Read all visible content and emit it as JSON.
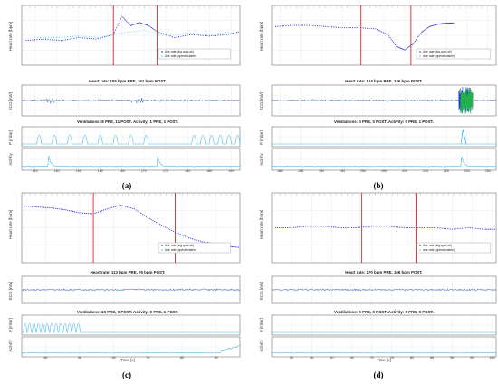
{
  "colors": {
    "rate_ok": "#1c1ccc",
    "rate_questionable": "#4fd3e8",
    "event_line": "#d72626",
    "ecg": "#1f6fc7",
    "ecg_marker": "#d72626",
    "pressure": "#46b8e6",
    "grid": "#e4e4e4",
    "axis": "#555555",
    "burst_a": "#1f3fbf",
    "burst_b": "#22b14c"
  },
  "panels": [
    {
      "caption": "(a)",
      "rate_ylabel": "Heart rate [bpm]",
      "legend": [
        "Ave rate (sig.qual ok)",
        "Ave rate (questionable)"
      ],
      "ecg_title": "Heart rate: 155 bpm PRE, 161 bpm POST.",
      "ecg_ylabel": "ECG [mV]",
      "vent_title": "Ventilations: 8 PRE, 11 POST. Activity: 1 PRE, 1 POST.",
      "p_label": "P [mbar]",
      "act_label": "Activity",
      "xticks": [
        "145",
        "150",
        "155",
        "160",
        "165",
        "170",
        "175",
        "180",
        "185",
        "190"
      ],
      "xlabel": ""
    },
    {
      "caption": "(b)",
      "rate_ylabel": "Heart rate [bpm]",
      "legend": [
        "Ave rate (sig.qual ok)",
        "Ave rate (questionable)"
      ],
      "ecg_title": "Heart rate: 153 bpm PRE, 146 bpm POST.",
      "ecg_ylabel": "ECG [mV]",
      "vent_title": "Ventilations: 0 PRE, 0 POST. Activity: 0 PRE, 1 POST.",
      "p_label": "P [mbar]",
      "act_label": "Activity",
      "xticks": [
        "180",
        "185",
        "190",
        "195",
        "200",
        "205",
        "210",
        "215",
        "220",
        "225",
        "230"
      ],
      "xlabel": ""
    },
    {
      "caption": "(c)",
      "rate_ylabel": "Heart rate [bpm]",
      "legend": [
        "Ave rate (sig.qual ok)",
        "Ave rate (questionable)"
      ],
      "ecg_title": "Heart rate: 113 bpm PRE, 76 bpm POST.",
      "ecg_ylabel": "ECG [mV]",
      "vent_title": "Ventilations: 23 PRE, 0 POST. Activity: 0 PRE, 1 POST.",
      "p_label": "P [mbar]",
      "act_label": "Activity",
      "xticks": [
        "40",
        "50",
        "60",
        "70",
        "80",
        "90"
      ],
      "xlabel": "Time [s]"
    },
    {
      "caption": "(d)",
      "rate_ylabel": "Heart rate [bpm]",
      "legend": [
        "Ave rate (sig.qual ok)",
        "Ave rate (questionable)"
      ],
      "ecg_title": "Heart rate: 170 bpm PRE, 168 bpm POST.",
      "ecg_ylabel": "ECG [mV]",
      "vent_title": "Ventilations: 0 PRE, 0 POST. Activity: 0 PRE, 0 POST.",
      "p_label": "P [mbar]",
      "act_label": "Activity",
      "xticks": [
        "50",
        "55",
        "60",
        "65",
        "70",
        "75",
        "80",
        "85",
        "90",
        "95",
        "100"
      ],
      "xlabel": "Time [s]"
    }
  ],
  "chart_data": [
    {
      "type": "line",
      "panel": "(a)",
      "x_range": [
        142,
        192
      ],
      "event_lines_x": [
        163,
        173
      ],
      "series": [
        {
          "name": "Ave rate (sig.qual ok)",
          "x": [
            143,
            147,
            151,
            155,
            159,
            163,
            165,
            167,
            169,
            171,
            173,
            177,
            181,
            185,
            189,
            192
          ],
          "y": [
            154,
            155,
            154,
            156,
            155,
            158,
            170,
            164,
            166,
            164,
            160,
            156,
            158,
            157,
            158,
            160
          ]
        },
        {
          "name": "Ave rate (questionable)",
          "x": [
            145,
            150,
            155,
            160,
            165,
            170,
            175,
            180,
            185,
            190
          ],
          "y": [
            156,
            156,
            157,
            156,
            159,
            161,
            157,
            159,
            158,
            160
          ]
        }
      ],
      "ventilations_x": [
        146,
        149.5,
        153,
        156.5,
        160,
        163.5,
        167,
        170.5,
        181.5,
        183.5,
        185.5,
        187.5,
        189.5,
        191.5
      ]
    },
    {
      "type": "line",
      "panel": "(b)",
      "x_range": [
        178,
        232
      ],
      "event_lines_x": [
        199.5,
        211.5
      ],
      "series": [
        {
          "name": "Ave rate (sig.qual ok)",
          "x": [
            179,
            183,
            187,
            191,
            195,
            199,
            203,
            206,
            208,
            210,
            212,
            214,
            216,
            218,
            220,
            222
          ],
          "y": [
            155,
            156,
            156,
            155,
            154,
            154,
            153,
            148,
            138,
            135,
            140,
            150,
            155,
            157,
            158,
            158
          ]
        }
      ],
      "ventilations_x": []
    },
    {
      "type": "line",
      "panel": "(c)",
      "x_range": [
        33,
        97
      ],
      "event_lines_x": [
        54,
        78
      ],
      "series": [
        {
          "name": "Ave rate (sig.qual ok)",
          "x": [
            34,
            38,
            42,
            46,
            50,
            54,
            58,
            62,
            66,
            70,
            74,
            78,
            82,
            86,
            90,
            94,
            97
          ],
          "y": [
            115,
            114,
            113,
            111,
            108,
            107,
            112,
            116,
            112,
            103,
            95,
            88,
            82,
            78,
            76,
            73,
            72
          ]
        }
      ],
      "ventilations_x": [
        34,
        35.3,
        36.6,
        37.9,
        39.2,
        40.5,
        41.8,
        43.1,
        44.4,
        45.7,
        47,
        48.3,
        49.6
      ]
    },
    {
      "type": "line",
      "panel": "(d)",
      "x_range": [
        45,
        101
      ],
      "event_lines_x": [
        67.5,
        81
      ],
      "series": [
        {
          "name": "Ave rate (sig.qual ok)",
          "x": [
            46,
            50,
            54,
            58,
            62,
            66,
            70,
            74,
            78,
            82,
            86,
            90,
            94,
            98,
            101
          ],
          "y": [
            170,
            170,
            171,
            171,
            170,
            170,
            171,
            171,
            170,
            170,
            170,
            169,
            170,
            169,
            169
          ]
        }
      ],
      "ventilations_x": []
    }
  ]
}
